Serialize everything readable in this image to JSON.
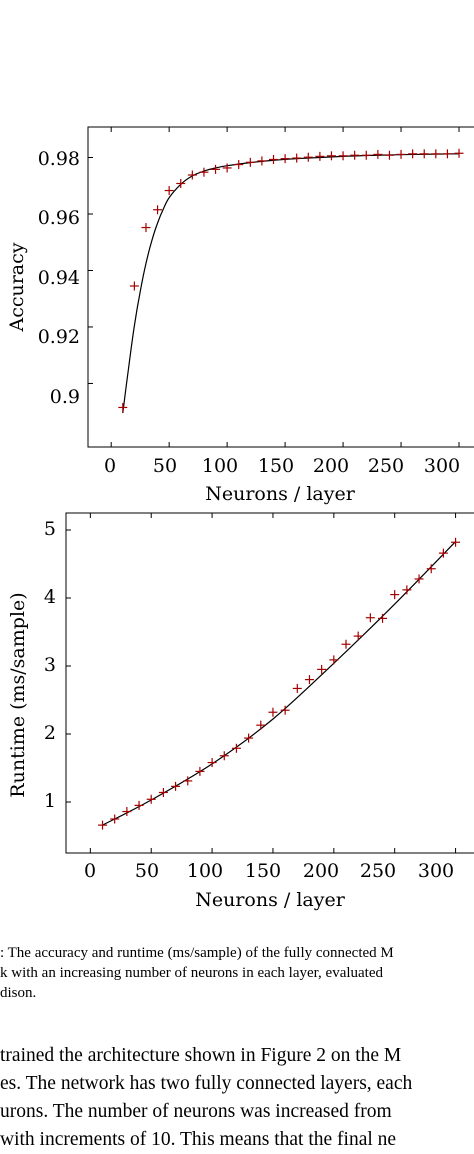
{
  "chart_data": [
    {
      "type": "scatter",
      "xlabel": "Neurons / layer",
      "ylabel": "Accuracy",
      "xlim": [
        -20,
        325
      ],
      "ylim": [
        0.8775,
        0.9908
      ],
      "xticks": [
        0,
        50,
        100,
        150,
        200,
        250,
        300
      ],
      "xtick_labels": [
        "0",
        "50",
        "100",
        "150",
        "200",
        "250",
        "300"
      ],
      "yticks": [
        0.9,
        0.92,
        0.94,
        0.96,
        0.98
      ],
      "ytick_labels": [
        "0.9",
        "0.92",
        "0.94",
        "0.96",
        "0.98"
      ],
      "grid": false,
      "points_color": "#a40000",
      "fit_color": "#000000",
      "series": [
        {
          "x": [
            10,
            20,
            30,
            40,
            50,
            60,
            70,
            80,
            90,
            100,
            110,
            120,
            130,
            140,
            150,
            160,
            170,
            180,
            190,
            200,
            210,
            220,
            230,
            240,
            250,
            260,
            270,
            280,
            290,
            300
          ],
          "y": [
            0.8915,
            0.9345,
            0.9552,
            0.9615,
            0.9683,
            0.9708,
            0.9738,
            0.9748,
            0.9758,
            0.9763,
            0.9775,
            0.9783,
            0.9788,
            0.9793,
            0.9796,
            0.9798,
            0.9801,
            0.9804,
            0.9806,
            0.9806,
            0.9808,
            0.9808,
            0.9811,
            0.9808,
            0.9811,
            0.9813,
            0.9813,
            0.9813,
            0.9813,
            0.9815
          ]
        }
      ],
      "fit": {
        "x": [
          10,
          15,
          20,
          25,
          30,
          35,
          40,
          45,
          50,
          60,
          70,
          80,
          90,
          100,
          120,
          140,
          160,
          180,
          200,
          220,
          250,
          280,
          300
        ],
        "y": [
          0.8895,
          0.9055,
          0.9205,
          0.9325,
          0.9425,
          0.9505,
          0.9568,
          0.9618,
          0.9658,
          0.9705,
          0.9735,
          0.9752,
          0.9763,
          0.9771,
          0.9782,
          0.979,
          0.9796,
          0.98,
          0.9804,
          0.9807,
          0.981,
          0.9812,
          0.9813
        ]
      }
    },
    {
      "type": "scatter",
      "xlabel": "Neurons / layer",
      "ylabel": "Runtime (ms/sample)",
      "xlim": [
        -20,
        325
      ],
      "ylim": [
        0.25,
        5.25
      ],
      "xticks": [
        0,
        50,
        100,
        150,
        200,
        250,
        300
      ],
      "xtick_labels": [
        "0",
        "50",
        "100",
        "150",
        "200",
        "250",
        "300"
      ],
      "yticks": [
        1,
        2,
        3,
        4,
        5
      ],
      "ytick_labels": [
        "1",
        "2",
        "3",
        "4",
        "5"
      ],
      "grid": false,
      "points_color": "#a40000",
      "fit_color": "#000000",
      "series": [
        {
          "x": [
            10,
            20,
            30,
            40,
            50,
            60,
            70,
            80,
            90,
            100,
            110,
            120,
            130,
            140,
            150,
            160,
            170,
            180,
            190,
            200,
            210,
            220,
            230,
            240,
            250,
            260,
            270,
            280,
            290,
            300
          ],
          "y": [
            0.66,
            0.75,
            0.86,
            0.95,
            1.04,
            1.14,
            1.23,
            1.31,
            1.45,
            1.58,
            1.68,
            1.79,
            1.94,
            2.13,
            2.32,
            2.35,
            2.67,
            2.8,
            2.95,
            3.09,
            3.32,
            3.44,
            3.71,
            3.7,
            4.05,
            4.12,
            4.28,
            4.43,
            4.66,
            4.82
          ]
        }
      ],
      "fit": {
        "x": [
          10,
          50,
          100,
          150,
          200,
          250,
          300
        ],
        "y": [
          0.66,
          1.03,
          1.56,
          2.22,
          3.04,
          3.91,
          4.83
        ]
      }
    }
  ],
  "caption_lines": [
    ": The accuracy and runtime (ms/sample) of the fully connected M",
    "k with an increasing number of neurons in each layer, evaluated",
    "dison."
  ],
  "body_lines": [
    " trained the architecture shown in Figure 2 on the M",
    "es. The network has two fully connected layers, each",
    "urons. The number of neurons was increased from",
    "with increments of 10. This means that the final ne"
  ]
}
